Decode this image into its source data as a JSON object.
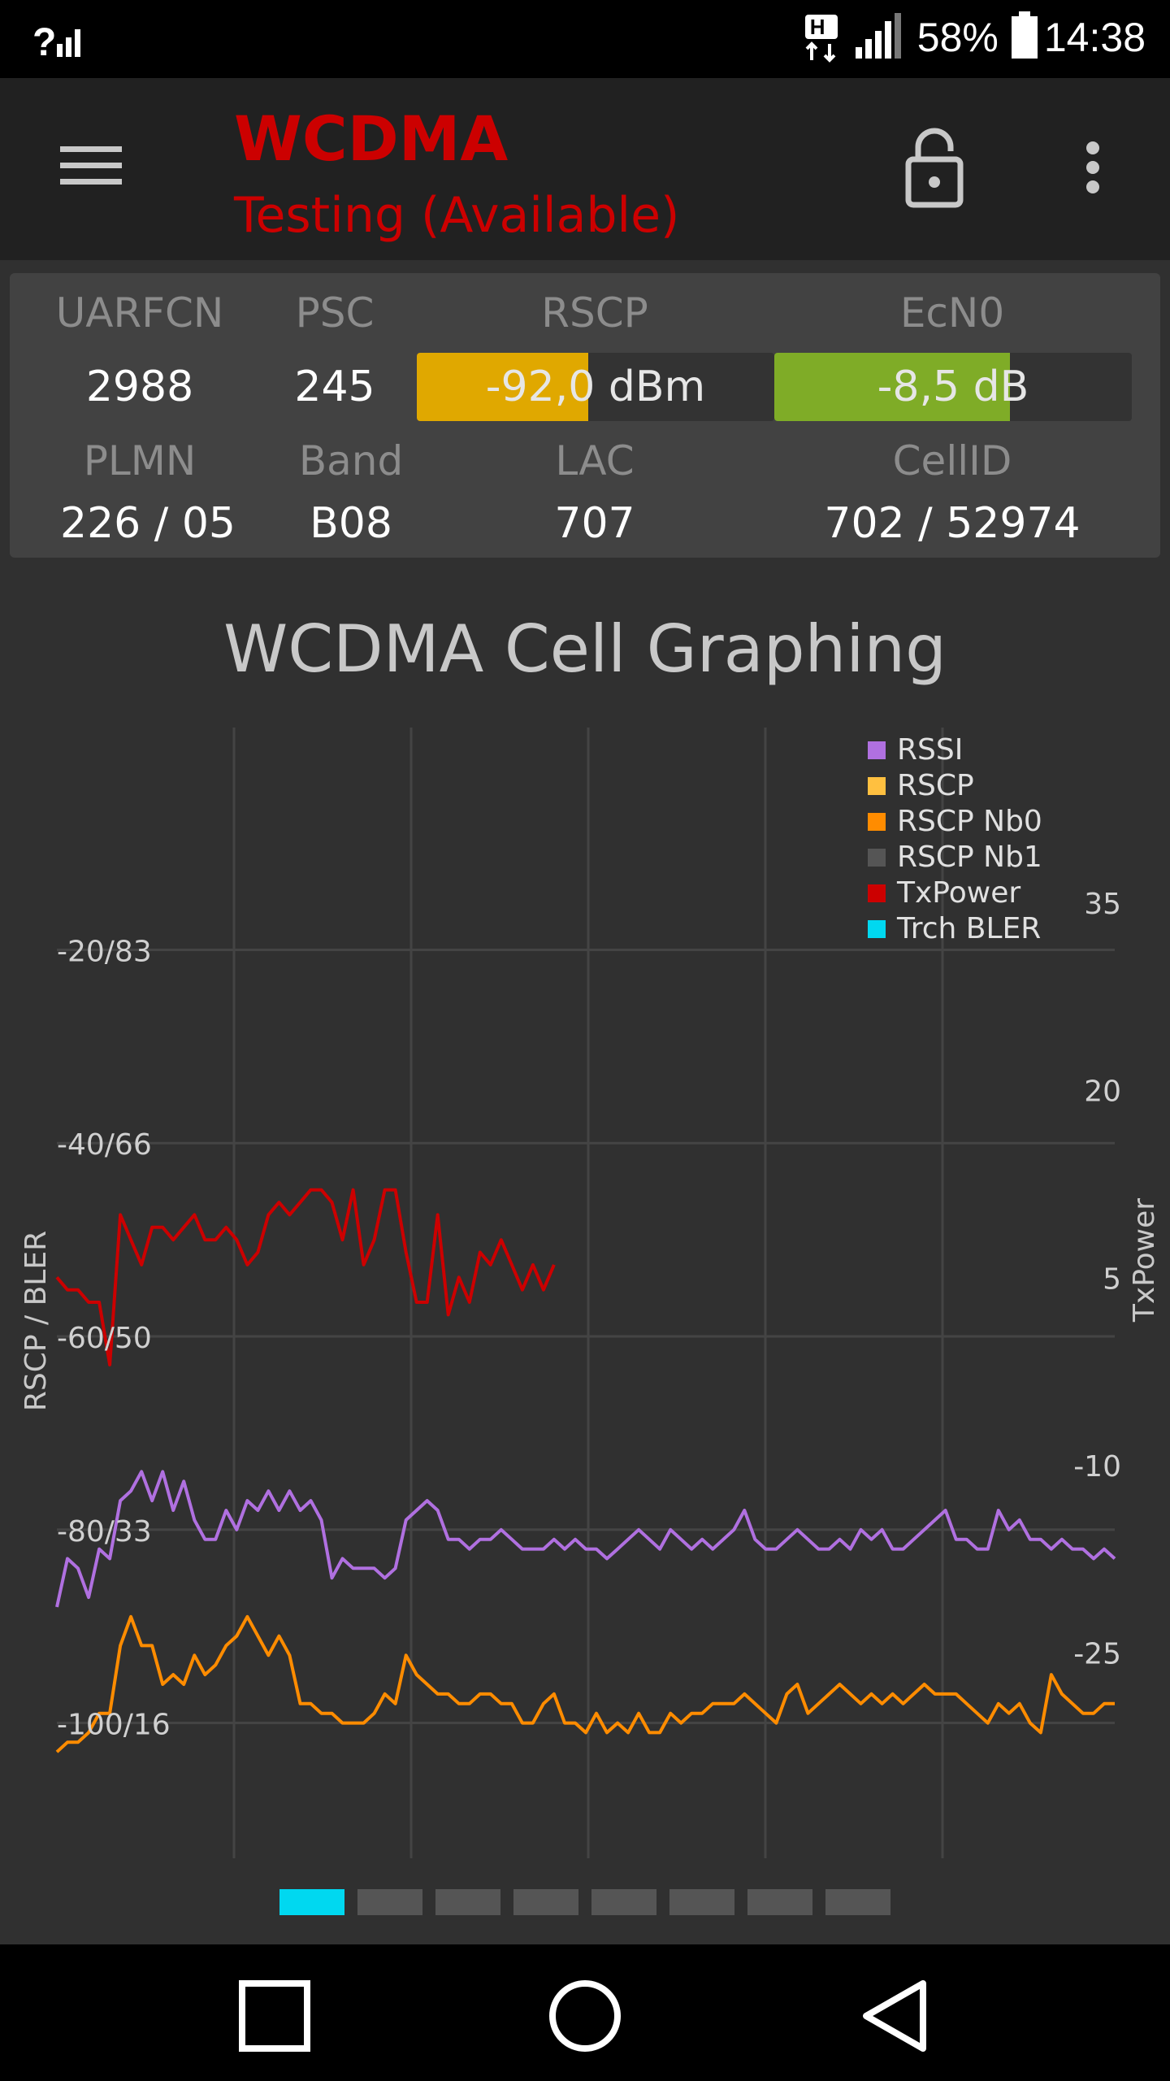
{
  "status_bar": {
    "network_type": "H",
    "battery": "58%",
    "time": "14:38"
  },
  "app_bar": {
    "title": "WCDMA",
    "subtitle": "Testing (Available)",
    "title_color": "#cc0000",
    "icons": [
      "menu-icon",
      "lock-open-icon",
      "more-vert-icon"
    ]
  },
  "cell_info": {
    "labels_row1": {
      "uarfcn": "UARFCN",
      "psc": "PSC",
      "rscp": "RSCP",
      "ecn0": "EcN0"
    },
    "values_row1": {
      "uarfcn": "2988",
      "psc": "245"
    },
    "rscp_meter": {
      "text": "-92,0 dBm",
      "fraction": 0.48,
      "color": "#e0a800"
    },
    "ecn0_meter": {
      "text": "-8,5 dB",
      "fraction": 0.66,
      "color": "#7fac27"
    },
    "labels_row2": {
      "plmn": "PLMN",
      "band": "Band",
      "lac": "LAC",
      "cellid": "CellID"
    },
    "values_row2": {
      "plmn": "226 / 05",
      "band": "B08",
      "lac": "707",
      "cellid": "702 / 52974"
    }
  },
  "graph": {
    "title": "WCDMA Cell Graphing",
    "left_axis_label": "RSCP / BLER",
    "right_axis_label": "TxPower",
    "left_ticks": [
      "-20/83",
      "-40/66",
      "-60/50",
      "-80/33",
      "-100/16"
    ],
    "right_ticks": [
      "-25",
      "-10",
      "5",
      "20",
      "35"
    ],
    "legend": [
      {
        "name": "RSSI",
        "color": "#b070e0"
      },
      {
        "name": "RSCP",
        "color": "#ffc040"
      },
      {
        "name": "RSCP Nb0",
        "color": "#ff8c00"
      },
      {
        "name": "RSCP Nb1",
        "color": "#555555"
      },
      {
        "name": "TxPower",
        "color": "#cc0000"
      },
      {
        "name": "Trch BLER",
        "color": "#00d8f0"
      }
    ]
  },
  "chart_data": {
    "type": "line",
    "title": "WCDMA Cell Graphing",
    "ylabel": "RSCP / BLER",
    "y2label": "TxPower",
    "y_ticks": [
      "-20/83",
      "-40/66",
      "-60/50",
      "-80/33",
      "-100/16"
    ],
    "y2_ticks": [
      "-25",
      "-10",
      "5",
      "20",
      "35"
    ],
    "ylim": [
      -114,
      3
    ],
    "y2lim": [
      -41.5,
      49
    ],
    "x": [
      0,
      2,
      4,
      6,
      8,
      10,
      12,
      14,
      16,
      18,
      20,
      22,
      24,
      26,
      28,
      30,
      32,
      34,
      36,
      38,
      40,
      42,
      44,
      46,
      48,
      50,
      52,
      54,
      56,
      58,
      60,
      62,
      64,
      66,
      68,
      70,
      72,
      74,
      76,
      78,
      80,
      82,
      84,
      86,
      88,
      90,
      92,
      94,
      96,
      98,
      100,
      102,
      104,
      106,
      108,
      110,
      112,
      114,
      116,
      118,
      120,
      122,
      124,
      126,
      128,
      130,
      132,
      134,
      136,
      138,
      140,
      142,
      144,
      146,
      148,
      150,
      152,
      154,
      156,
      158,
      160,
      162,
      164,
      166,
      168,
      170,
      172,
      174,
      176,
      178,
      180,
      182,
      184,
      186,
      188,
      190,
      192,
      194,
      196,
      198,
      200
    ],
    "series": [
      {
        "name": "RSSI",
        "color": "#b070e0",
        "axis": "left",
        "values": [
          -88,
          -83,
          -84,
          -87,
          -82,
          -83,
          -77,
          -76,
          -74,
          -77,
          -74,
          -78,
          -75,
          -79,
          -81,
          -81,
          -78,
          -80,
          -77,
          -78,
          -76,
          -78,
          -76,
          -78,
          -77,
          -79,
          -85,
          -83,
          -84,
          -84,
          -84,
          -85,
          -84,
          -79,
          -78,
          -77,
          -78,
          -81,
          -81,
          -82,
          -81,
          -81,
          -80,
          -81,
          -82,
          -82,
          -82,
          -81,
          -82,
          -81,
          -82,
          -82,
          -83,
          -82,
          -81,
          -80,
          -81,
          -82,
          -80,
          -81,
          -82,
          -81,
          -82,
          -81,
          -80,
          -78,
          -81,
          -82,
          -82,
          -81,
          -80,
          -81,
          -82,
          -82,
          -81,
          -82,
          -80,
          -81,
          -80,
          -82,
          -82,
          -81,
          -80,
          -79,
          -78,
          -81,
          -81,
          -82,
          -82,
          -78,
          -80,
          -79,
          -81,
          -81,
          -82,
          -81,
          -82,
          -82,
          -83,
          -82,
          -83
        ]
      },
      {
        "name": "RSCP Nb0",
        "color": "#ff8c00",
        "axis": "left",
        "values": [
          -103,
          -102,
          -102,
          -101,
          -99,
          -99,
          -92,
          -89,
          -92,
          -92,
          -96,
          -95,
          -96,
          -93,
          -95,
          -94,
          -92,
          -91,
          -89,
          -91,
          -93,
          -91,
          -93,
          -98,
          -98,
          -99,
          -99,
          -100,
          -100,
          -100,
          -99,
          -97,
          -98,
          -93,
          -95,
          -96,
          -97,
          -97,
          -98,
          -98,
          -97,
          -97,
          -98,
          -98,
          -100,
          -100,
          -98,
          -97,
          -100,
          -100,
          -101,
          -99,
          -101,
          -100,
          -101,
          -99,
          -101,
          -101,
          -99,
          -100,
          -99,
          -99,
          -98,
          -98,
          -98,
          -97,
          -98,
          -99,
          -100,
          -97,
          -96,
          -99,
          -98,
          -97,
          -96,
          -97,
          -98,
          -97,
          -98,
          -97,
          -98,
          -97,
          -96,
          -97,
          -97,
          -97,
          -98,
          -99,
          -100,
          -98,
          -99,
          -98,
          -100,
          -101,
          -95,
          -97,
          -98,
          -99,
          -99,
          -98,
          -98
        ]
      },
      {
        "name": "RSCP Nb1",
        "color": "#555555",
        "axis": "left",
        "values": [
          null,
          null,
          null,
          null,
          null,
          null,
          null,
          null,
          null,
          null,
          null,
          null,
          null,
          null,
          null,
          null,
          null,
          null,
          null,
          null,
          null,
          null,
          null,
          null,
          null,
          null,
          null,
          null,
          null,
          null,
          null,
          null,
          null,
          null,
          null,
          null,
          null,
          null,
          null,
          null,
          null,
          null,
          null,
          null,
          null,
          null,
          null,
          null,
          null,
          null,
          null,
          null,
          null,
          null,
          null,
          null,
          null,
          null,
          null,
          null,
          null,
          null,
          null,
          null,
          null,
          null,
          null,
          null,
          null,
          null,
          null,
          null,
          null,
          null,
          null,
          null,
          null,
          null,
          null,
          null,
          null,
          null,
          null,
          null,
          null,
          null,
          null,
          null,
          null,
          null,
          null,
          null,
          null,
          null,
          null,
          null,
          null,
          null,
          null,
          null,
          null
        ]
      },
      {
        "name": "TxPower",
        "color": "#cc0000",
        "axis": "right",
        "values": [
          5,
          4,
          4,
          3,
          3,
          -2,
          10,
          8,
          6,
          9,
          9,
          8,
          9,
          10,
          8,
          8,
          9,
          8,
          6,
          7,
          10,
          11,
          10,
          11,
          12,
          12,
          11,
          8,
          12,
          6,
          8,
          12,
          12,
          7,
          3,
          3,
          10,
          2,
          5,
          3,
          7,
          6,
          8,
          6,
          4,
          6,
          4,
          6,
          null,
          null,
          null,
          null,
          null,
          null,
          null,
          null,
          null,
          null,
          null,
          null,
          null,
          null,
          null,
          null,
          null,
          null,
          null,
          null,
          null,
          null,
          null,
          null,
          null,
          null,
          null,
          null,
          null,
          null,
          null,
          null,
          null,
          null,
          null,
          null,
          null,
          null,
          null,
          null,
          null,
          null,
          null,
          null,
          null,
          null,
          null,
          null,
          null,
          null,
          null,
          null,
          null
        ]
      },
      {
        "name": "Trch BLER",
        "color": "#00d8f0",
        "axis": "left",
        "values": [
          null,
          null,
          null,
          null,
          null,
          null,
          null,
          null,
          null,
          null,
          null,
          null,
          null,
          null,
          null,
          null,
          null,
          null,
          null,
          null,
          null,
          null,
          null,
          null,
          null,
          null,
          null,
          null,
          null,
          null,
          null,
          null,
          null,
          null,
          null,
          null,
          null,
          null,
          null,
          null,
          null,
          null,
          null,
          null,
          null,
          null,
          null,
          null,
          null,
          null,
          null,
          null,
          null,
          null,
          null,
          null,
          null,
          null,
          null,
          null,
          null,
          null,
          null,
          null,
          null,
          null,
          null,
          null,
          null,
          null,
          null,
          null,
          null,
          null,
          null,
          null,
          null,
          null,
          null,
          null,
          null,
          null,
          null,
          null,
          null,
          null,
          null,
          null,
          null,
          null,
          null,
          null,
          null,
          null,
          null,
          null,
          null,
          null,
          null,
          null,
          null
        ]
      }
    ]
  }
}
